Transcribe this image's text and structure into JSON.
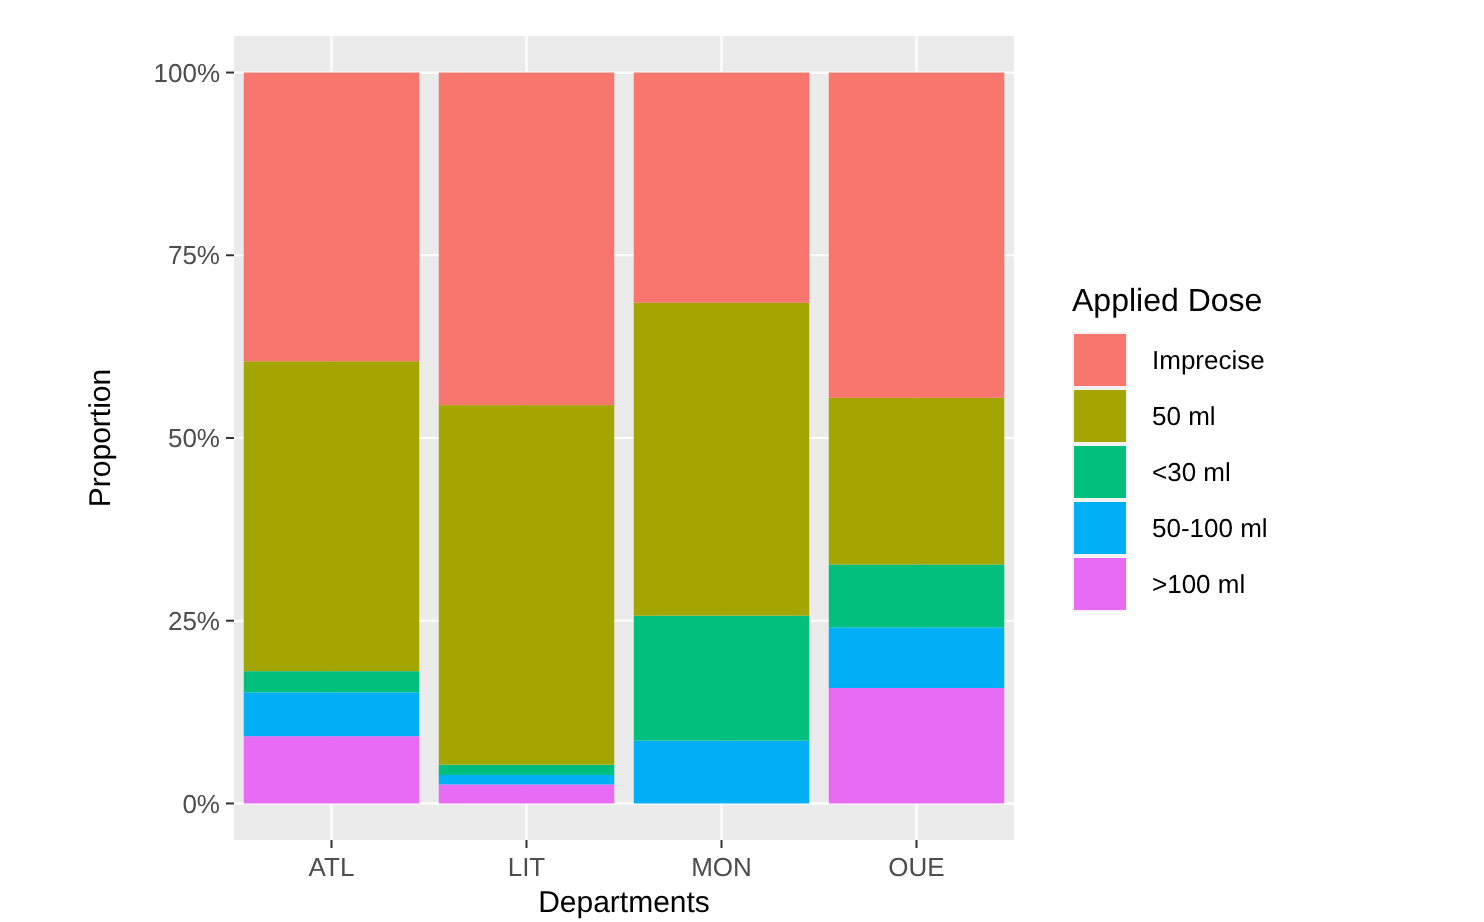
{
  "chart_data": {
    "type": "bar",
    "stacked": true,
    "xlabel": "Departments",
    "ylabel": "Proportion",
    "legend_title": "Applied Dose",
    "legend": "right",
    "grid": true,
    "categories": [
      "ATL",
      "LIT",
      "MON",
      "OUE"
    ],
    "ylim": [
      -5,
      105
    ],
    "yticks": [
      {
        "value": 0,
        "label": "0%"
      },
      {
        "value": 25,
        "label": "25%"
      },
      {
        "value": 50,
        "label": "50%"
      },
      {
        "value": 75,
        "label": "75%"
      },
      {
        "value": 100,
        "label": "100%"
      }
    ],
    "series": [
      {
        "name": ">100 ml",
        "color": "#e76bf3",
        "values": [
          9.2,
          2.6,
          0,
          15.8
        ]
      },
      {
        "name": "50-100 ml",
        "color": "#00b0f6",
        "values": [
          6.0,
          1.3,
          8.6,
          8.3
        ]
      },
      {
        "name": "<30 ml",
        "color": "#00bf7d",
        "values": [
          2.9,
          1.4,
          17.1,
          8.6
        ]
      },
      {
        "name": "50 ml",
        "color": "#a3a500",
        "values": [
          42.4,
          49.2,
          42.8,
          22.8
        ]
      },
      {
        "name": "Imprecise",
        "color": "#f8766d",
        "values": [
          39.5,
          45.5,
          31.5,
          44.5
        ]
      }
    ]
  }
}
